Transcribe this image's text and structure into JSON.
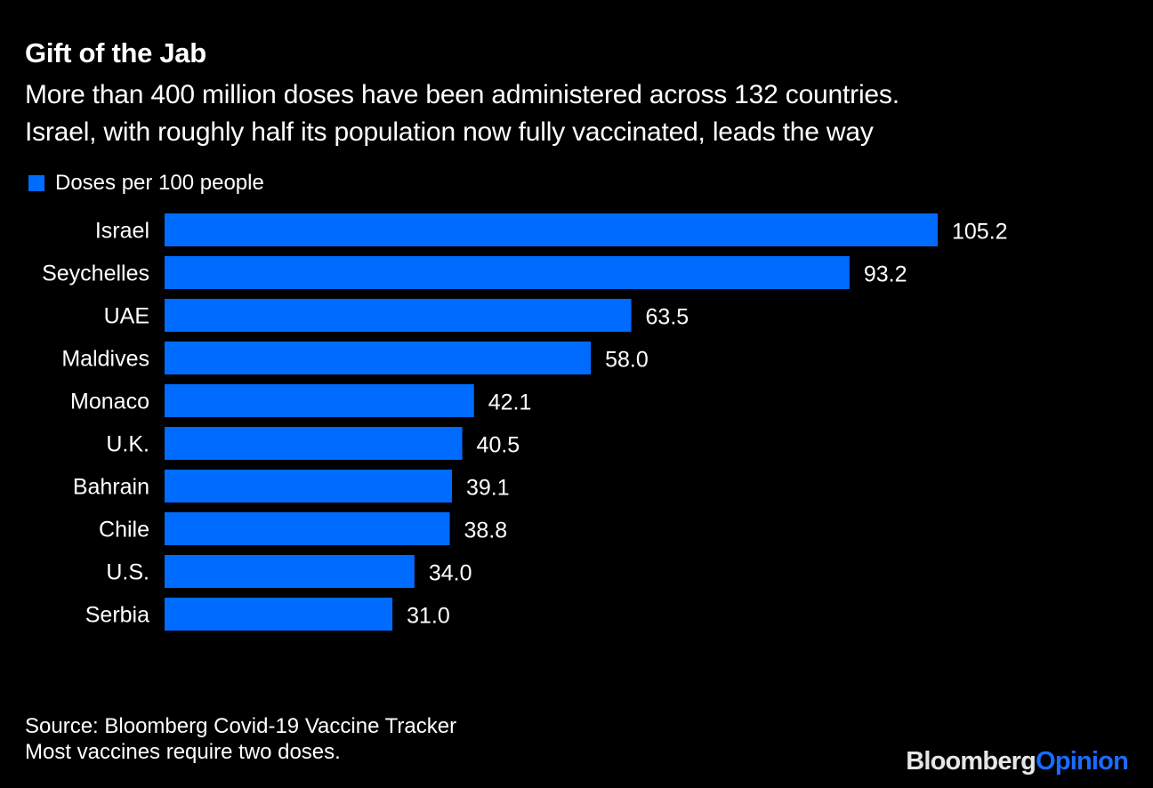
{
  "header": {
    "title": "Gift of the Jab",
    "subtitle_lines": [
      "More than 400 million doses have been administered across 132 countries.",
      "Israel, with roughly half its population now fully vaccinated, leads the way"
    ]
  },
  "legend": {
    "label": "Doses per 100 people",
    "color": "#006cff"
  },
  "footer": {
    "source": "Source: Bloomberg Covid-19 Vaccine Tracker",
    "note": "Most vaccines require two doses."
  },
  "logo": {
    "part1": "Bloomberg",
    "part2": "Opinion"
  },
  "chart_data": {
    "type": "bar",
    "orientation": "horizontal",
    "title": "Gift of the Jab",
    "subtitle": "More than 400 million doses have been administered across 132 countries. Israel, with roughly half its population now fully vaccinated, leads the way",
    "xlabel": "",
    "ylabel": "",
    "grid": false,
    "legend_position": "top-left",
    "bar_color": "#006cff",
    "series": [
      {
        "name": "Doses per 100 people",
        "values": [
          105.2,
          93.2,
          63.5,
          58.0,
          42.1,
          40.5,
          39.1,
          38.8,
          34.0,
          31.0
        ]
      }
    ],
    "categories": [
      "Israel",
      "Seychelles",
      "UAE",
      "Maldives",
      "Monaco",
      "U.K.",
      "Bahrain",
      "Chile",
      "U.S.",
      "Serbia"
    ],
    "value_labels": [
      "105.2",
      "93.2",
      "63.5",
      "58.0",
      "42.1",
      "40.5",
      "39.1",
      "38.8",
      "34.0",
      "31.0"
    ],
    "xlim": [
      0,
      105.2
    ]
  }
}
